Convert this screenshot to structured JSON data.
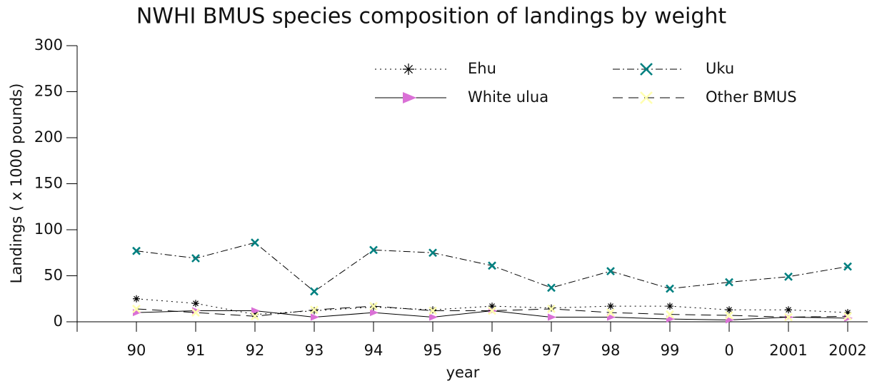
{
  "chart_data": {
    "type": "line",
    "title": "NWHI BMUS species composition of landings by weight",
    "x_label": "year",
    "y_label": "Landings ( x 1000 pounds)",
    "categories": [
      "90",
      "91",
      "92",
      "93",
      "94",
      "95",
      "96",
      "97",
      "98",
      "99",
      "0",
      "2001",
      "2002"
    ],
    "ylim": [
      0,
      300
    ],
    "yticks": [
      0,
      50,
      100,
      150,
      200,
      250,
      300
    ],
    "grid": false,
    "legend": "top",
    "series": [
      {
        "name": "Ehu",
        "color": "#000000",
        "line_color": "#000000",
        "line_style": "dotted",
        "marker": "asterisk",
        "values": [
          25,
          20,
          8,
          12,
          16,
          13,
          17,
          15,
          17,
          17,
          13,
          13,
          10
        ]
      },
      {
        "name": "Uku",
        "color": "#008080",
        "line_color": "#000000",
        "line_style": "dashdot",
        "marker": "x",
        "values": [
          77,
          69,
          86,
          33,
          78,
          75,
          61,
          37,
          55,
          36,
          43,
          49,
          60
        ]
      },
      {
        "name": "White ulua",
        "color": "#da70d6",
        "line_color": "#000000",
        "line_style": "solid",
        "marker": "triangle",
        "values": [
          10,
          12,
          12,
          5,
          10,
          5,
          12,
          5,
          5,
          3,
          2,
          5,
          4
        ]
      },
      {
        "name": "Other BMUS",
        "color": "#ffffb0",
        "line_color": "#000000",
        "line_style": "dashed",
        "marker": "x",
        "values": [
          14,
          10,
          6,
          13,
          17,
          12,
          12,
          14,
          10,
          8,
          7,
          5,
          6
        ]
      }
    ]
  }
}
